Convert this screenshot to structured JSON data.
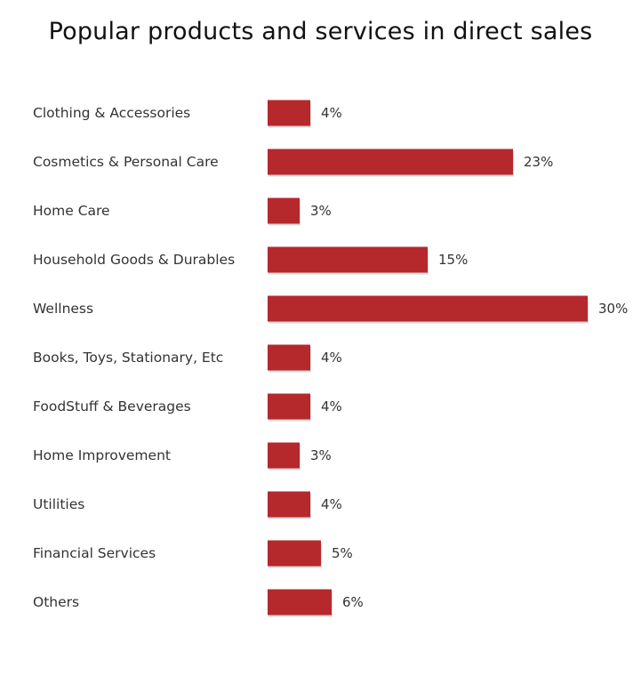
{
  "chart_data": {
    "type": "bar",
    "orientation": "horizontal",
    "title": "Popular products and services in direct sales",
    "categories": [
      "Clothing & Accessories",
      "Cosmetics & Personal Care",
      "Home Care",
      "Household Goods & Durables",
      "Wellness",
      "Books, Toys, Stationary, Etc",
      "FoodStuff & Beverages",
      "Home Improvement",
      "Utilities",
      "Financial Services",
      "Others"
    ],
    "values": [
      4,
      23,
      3,
      15,
      30,
      4,
      4,
      3,
      4,
      5,
      6
    ],
    "value_labels": [
      "4%",
      "23%",
      "3%",
      "15%",
      "30%",
      "4%",
      "4%",
      "3%",
      "4%",
      "5%",
      "6%"
    ],
    "unit": "%",
    "xlim": [
      0,
      30
    ],
    "grid": false,
    "legend": "none",
    "bar_color": "#b5282c"
  }
}
